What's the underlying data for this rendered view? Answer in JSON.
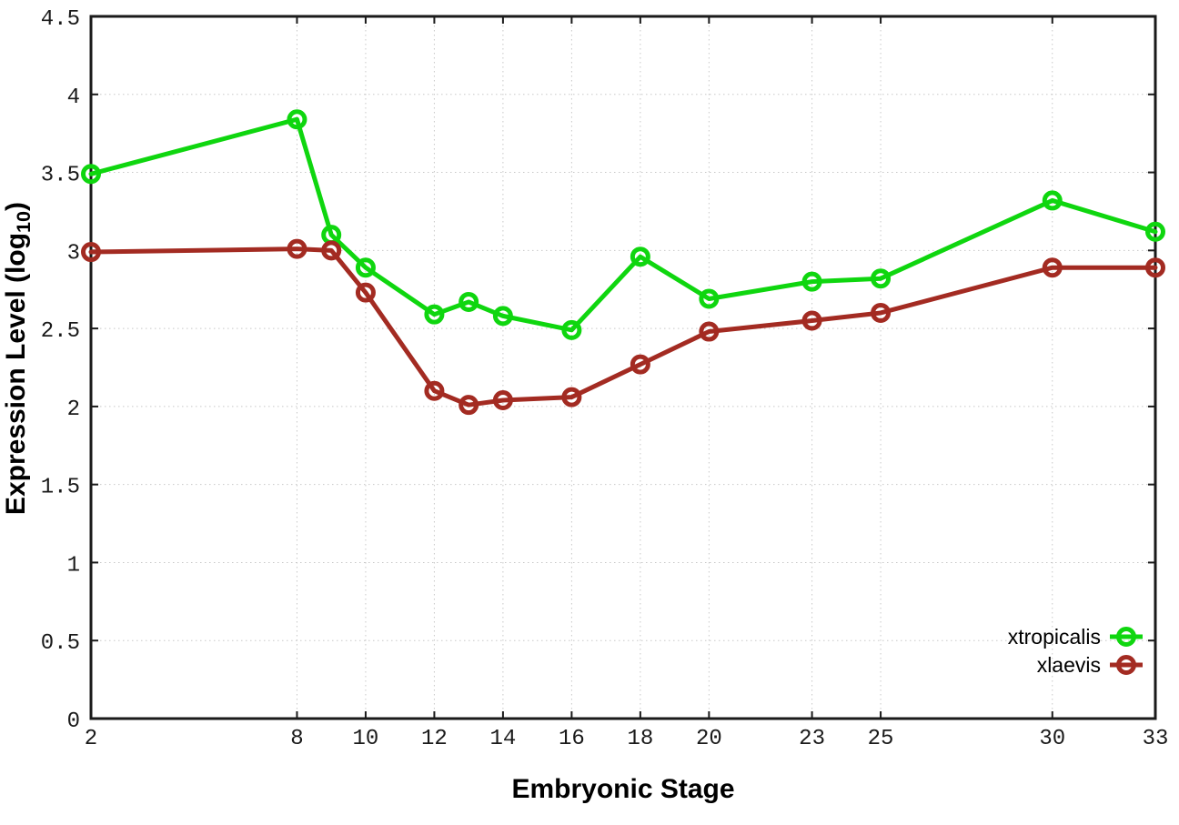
{
  "chart_data": {
    "type": "line",
    "title": "",
    "xlabel": "Embryonic Stage",
    "ylabel": {
      "pre": "Expression Level (log",
      "sub": "10",
      "post": ")"
    },
    "x_range": [
      2,
      33
    ],
    "y_range": [
      0,
      4.5
    ],
    "x_ticks": [
      2,
      8,
      10,
      12,
      14,
      16,
      18,
      20,
      23,
      25,
      30,
      33
    ],
    "x_tick_labels": [
      "2",
      "8",
      "10",
      "12",
      "14",
      "16",
      "18",
      "20",
      "23",
      "25",
      "30",
      "33"
    ],
    "y_ticks": [
      0,
      0.5,
      1,
      1.5,
      2,
      2.5,
      3,
      3.5,
      4,
      4.5
    ],
    "y_tick_labels": [
      "0",
      "0.5",
      "1",
      "1.5",
      "2",
      "2.5",
      "3",
      "3.5",
      "4",
      "4.5"
    ],
    "grid": true,
    "marker": "open-circle",
    "legend_position": "inside-bottom-right",
    "x": [
      2,
      8,
      9,
      10,
      12,
      13,
      14,
      16,
      18,
      20,
      23,
      25,
      30,
      33
    ],
    "series": [
      {
        "name": "xtropicalis",
        "color": "#0fd60f",
        "values": [
          3.49,
          3.84,
          3.1,
          2.89,
          2.59,
          2.67,
          2.58,
          2.49,
          2.96,
          2.69,
          2.8,
          2.82,
          3.32,
          3.12
        ]
      },
      {
        "name": "xlaevis",
        "color": "#a32b22",
        "values": [
          2.99,
          3.01,
          3.0,
          2.73,
          2.1,
          2.01,
          2.04,
          2.06,
          2.27,
          2.48,
          2.55,
          2.6,
          2.89,
          2.89
        ]
      }
    ]
  },
  "colors": {
    "background": "#ffffff",
    "grid": "#c8c8c8",
    "axis": "#1a1a1a"
  }
}
